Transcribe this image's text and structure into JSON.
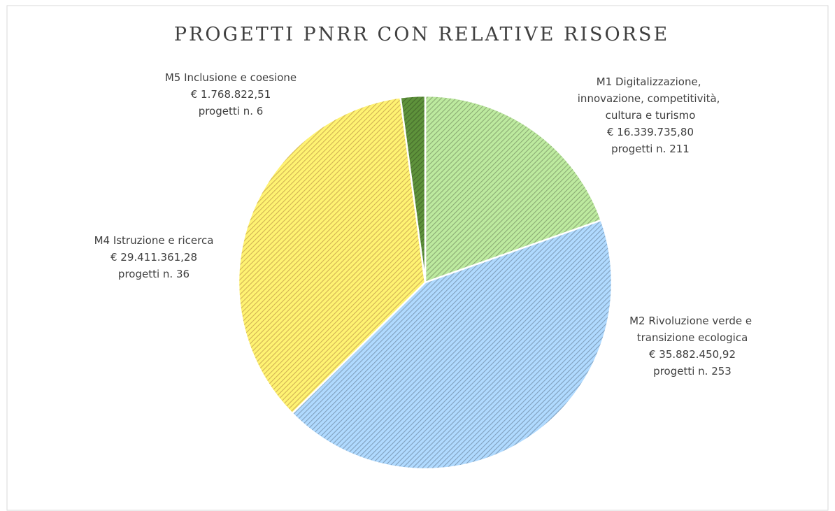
{
  "chart_data": {
    "type": "pie",
    "title": "PROGETTI PNRR CON RELATIVE RISORSE",
    "categories": [
      "M1 Digitalizzazione, innovazione, competitività, cultura e turismo",
      "M2 Rivoluzione verde e transizione ecologica",
      "M4 Istruzione e ricerca",
      "M5 Inclusione e coesione"
    ],
    "values": [
      16339735.8,
      35882450.92,
      29411361.28,
      1768822.51
    ],
    "value_labels": [
      "€ 16.339.735,80",
      "€ 35.882.450,92",
      "€ 29.411.361,28",
      "€ 1.768.822,51"
    ],
    "project_counts_label": "progetti n.",
    "project_counts": [
      211,
      253,
      36,
      6
    ],
    "colors": [
      "#a9d18e",
      "#9dc3e6",
      "#ffd966",
      "#548235"
    ]
  }
}
